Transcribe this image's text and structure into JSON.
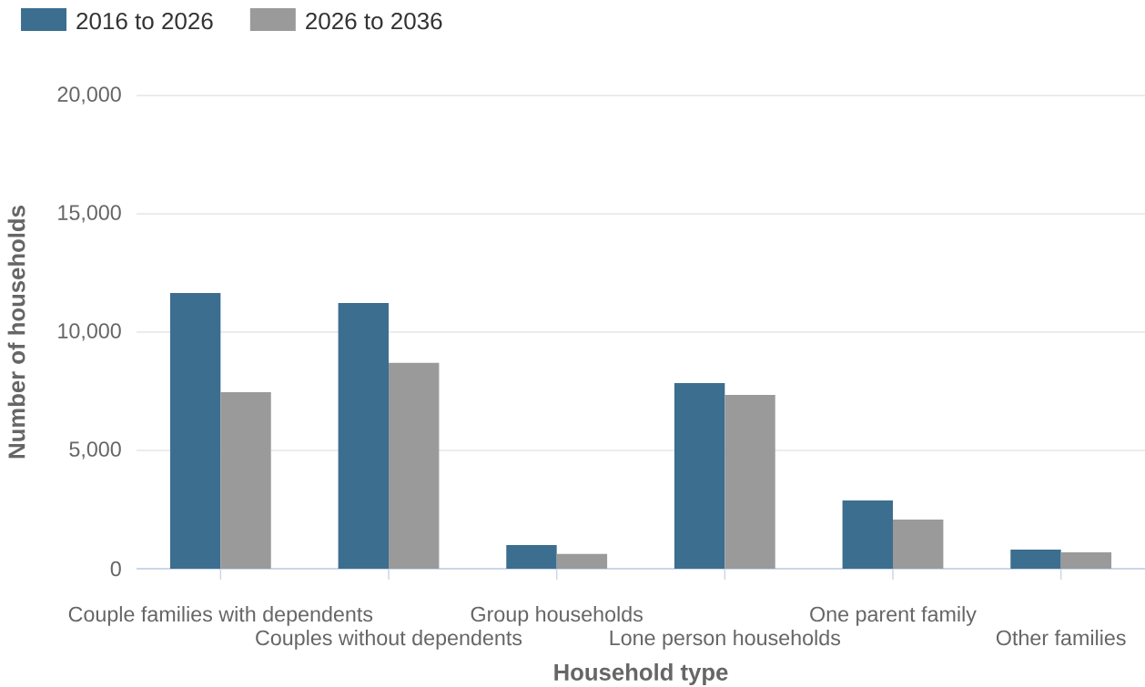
{
  "chart_data": {
    "type": "bar",
    "xlabel": "Household type",
    "ylabel": "Number of households",
    "categories": [
      "Couple families with dependents",
      "Couples without dependents",
      "Group households",
      "Lone person households",
      "One parent family",
      "Other families"
    ],
    "series": [
      {
        "name": "2016 to 2026",
        "color": "#3c6e8f",
        "values": [
          11650,
          11230,
          1000,
          7850,
          2880,
          810
        ]
      },
      {
        "name": "2026 to 2036",
        "color": "#9a9a9a",
        "values": [
          7460,
          8700,
          620,
          7350,
          2080,
          690
        ]
      }
    ],
    "ylim": [
      0,
      20000
    ],
    "yticks": [
      0,
      {
        "value": 5000,
        "label": "5,000"
      },
      {
        "value": 10000,
        "label": "10,000"
      },
      {
        "value": 15000,
        "label": "15,000"
      },
      {
        "value": 20000,
        "label": "20,000"
      }
    ],
    "grid": "y",
    "legend": "top left"
  }
}
